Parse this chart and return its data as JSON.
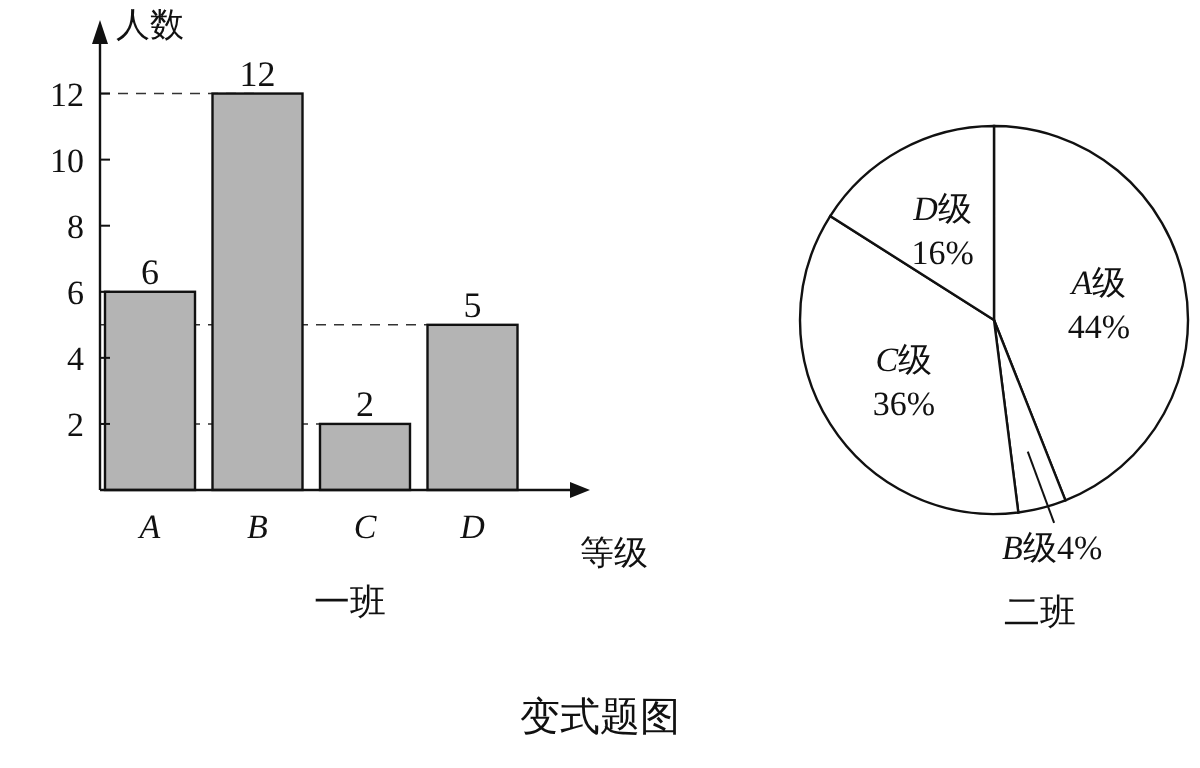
{
  "chart_data": [
    {
      "type": "bar",
      "title": "一班",
      "xlabel": "等级",
      "ylabel": "人数",
      "categories": [
        "A",
        "B",
        "C",
        "D"
      ],
      "values": [
        6,
        12,
        2,
        5
      ],
      "color": "#b4b4b4",
      "ylim": [
        0,
        13.5
      ],
      "yticks": [
        2,
        4,
        6,
        8,
        10,
        12
      ],
      "data_labels": true,
      "ref_lines": [
        {
          "axis": "y",
          "value": 12,
          "line_style": "dashed"
        },
        {
          "axis": "y",
          "value": 6,
          "line_style": "dashed"
        },
        {
          "axis": "y",
          "value": 5,
          "line_style": "dashed"
        },
        {
          "axis": "y",
          "value": 2,
          "line_style": "dashed"
        }
      ],
      "annotations": [
        "变式题图"
      ]
    },
    {
      "type": "pie",
      "title": "二班",
      "categories": [
        "A级",
        "B级",
        "C级",
        "D级"
      ],
      "values": [
        44,
        4,
        36,
        16
      ],
      "colors": [
        "#ffffff",
        "#ffffff",
        "#ffffff",
        "#ffffff"
      ],
      "value_labels": [
        "44%",
        "4%",
        "36%",
        "16%"
      ]
    }
  ]
}
